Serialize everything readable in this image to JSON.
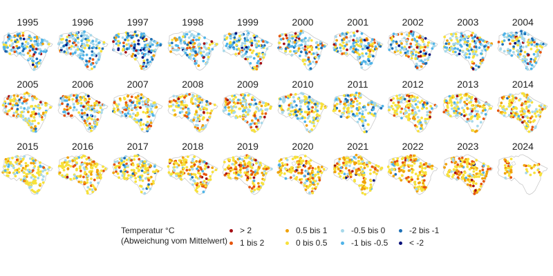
{
  "chart_data": {
    "type": "map-small-multiples",
    "title": "",
    "region_outline": "Niedersachsen (state outline, grey)",
    "years": [
      "1995",
      "1996",
      "1997",
      "1998",
      "1999",
      "2000",
      "2001",
      "2002",
      "2003",
      "2004",
      "2005",
      "2006",
      "2007",
      "2008",
      "2009",
      "2010",
      "2011",
      "2012",
      "2013",
      "2014",
      "2015",
      "2016",
      "2017",
      "2018",
      "2019",
      "2020",
      "2021",
      "2022",
      "2023",
      "2024"
    ],
    "grid": {
      "columns": 10,
      "rows": 3
    },
    "legend": {
      "title_line1": "Temperatur °C",
      "title_line2": "(Abweichung vom Mittelwert)",
      "classes": [
        {
          "label": "> 2",
          "color": "#a50f15"
        },
        {
          "label": "1 bis 2",
          "color": "#e6550d"
        },
        {
          "label": "0.5 bis 1",
          "color": "#f0a20a"
        },
        {
          "label": "0 bis 0.5",
          "color": "#f7e13b"
        },
        {
          "label": "-0.5 bis 0",
          "color": "#a6d8ea"
        },
        {
          "label": "-1 bis -0.5",
          "color": "#4fb3e8"
        },
        {
          "label": "-2 bis -1",
          "color": "#1c6fb5"
        },
        {
          "label": "< -2",
          "color": "#08107a"
        }
      ]
    },
    "year_class_mix": {
      "1995": [
        2,
        4,
        6,
        14,
        30,
        30,
        12,
        2
      ],
      "1996": [
        2,
        4,
        4,
        10,
        36,
        28,
        12,
        4
      ],
      "1997": [
        3,
        5,
        5,
        12,
        24,
        28,
        15,
        8
      ],
      "1998": [
        2,
        6,
        5,
        16,
        32,
        28,
        9,
        2
      ],
      "1999": [
        3,
        5,
        5,
        18,
        30,
        24,
        10,
        5
      ],
      "2000": [
        3,
        8,
        8,
        20,
        32,
        20,
        6,
        3
      ],
      "2001": [
        3,
        8,
        8,
        20,
        28,
        22,
        8,
        3
      ],
      "2002": [
        3,
        8,
        8,
        22,
        30,
        20,
        6,
        3
      ],
      "2003": [
        2,
        6,
        6,
        18,
        36,
        22,
        8,
        2
      ],
      "2004": [
        3,
        6,
        6,
        18,
        34,
        22,
        8,
        3
      ],
      "2005": [
        3,
        8,
        10,
        28,
        34,
        10,
        5,
        2
      ],
      "2006": [
        2,
        14,
        12,
        22,
        30,
        10,
        6,
        4
      ],
      "2007": [
        3,
        12,
        12,
        30,
        32,
        8,
        3,
        0
      ],
      "2008": [
        2,
        12,
        12,
        34,
        30,
        8,
        2,
        0
      ],
      "2009": [
        2,
        10,
        14,
        36,
        28,
        8,
        2,
        0
      ],
      "2010": [
        1,
        6,
        8,
        38,
        28,
        10,
        9,
        0
      ],
      "2011": [
        1,
        6,
        8,
        34,
        30,
        12,
        9,
        0
      ],
      "2012": [
        2,
        8,
        10,
        44,
        28,
        6,
        2,
        0
      ],
      "2013": [
        3,
        8,
        10,
        46,
        24,
        6,
        3,
        0
      ],
      "2014": [
        3,
        12,
        16,
        46,
        18,
        4,
        1,
        0
      ],
      "2015": [
        0,
        8,
        10,
        56,
        20,
        6,
        0,
        0
      ],
      "2016": [
        2,
        10,
        18,
        50,
        16,
        4,
        0,
        0
      ],
      "2017": [
        0,
        10,
        10,
        50,
        20,
        6,
        4,
        0
      ],
      "2018": [
        2,
        10,
        16,
        46,
        18,
        4,
        2,
        2
      ],
      "2019": [
        3,
        14,
        22,
        48,
        10,
        3,
        0,
        0
      ],
      "2020": [
        2,
        12,
        24,
        46,
        10,
        3,
        1,
        2
      ],
      "2021": [
        1,
        12,
        24,
        48,
        10,
        3,
        0,
        2
      ],
      "2022": [
        1,
        14,
        24,
        46,
        10,
        4,
        1,
        0
      ],
      "2023": [
        2,
        20,
        28,
        36,
        8,
        3,
        1,
        2
      ],
      "2024": [
        0,
        14,
        30,
        46,
        10,
        0,
        0,
        0
      ]
    },
    "partial_coverage_years": [
      "2024"
    ]
  }
}
